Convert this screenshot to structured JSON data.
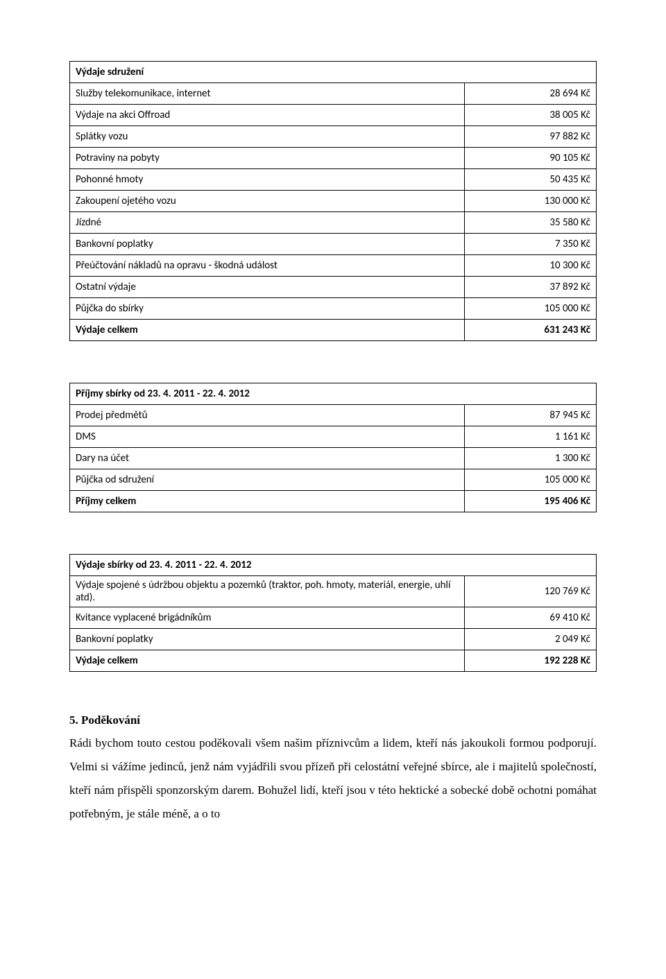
{
  "tables": {
    "expenses_assoc": {
      "header": "Výdaje sdružení",
      "rows": [
        {
          "label": "Služby telekomunikace, internet",
          "value": "28 694 Kč"
        },
        {
          "label": "Výdaje na akci Offroad",
          "value": "38 005 Kč"
        },
        {
          "label": "Splátky vozu",
          "value": "97 882 Kč"
        },
        {
          "label": "Potraviny na pobyty",
          "value": "90 105 Kč"
        },
        {
          "label": "Pohonné hmoty",
          "value": "50 435 Kč"
        },
        {
          "label": "Zakoupení ojetého vozu",
          "value": "130 000 Kč"
        },
        {
          "label": "Jízdné",
          "value": "35 580 Kč"
        },
        {
          "label": "Bankovní poplatky",
          "value": "7 350 Kč"
        },
        {
          "label": "Přeúčtování nákladů na opravu - škodná událost",
          "value": "10 300 Kč"
        },
        {
          "label": "Ostatní výdaje",
          "value": "37 892 Kč"
        },
        {
          "label": "Půjčka do sbírky",
          "value": "105 000 Kč"
        }
      ],
      "total": {
        "label": "Výdaje celkem",
        "value": "631 243 Kč"
      }
    },
    "income_collection": {
      "header": "Příjmy sbírky od 23. 4. 2011 - 22. 4. 2012",
      "rows": [
        {
          "label": "Prodej předmětů",
          "value": "87 945 Kč"
        },
        {
          "label": "DMS",
          "value": "1 161 Kč"
        },
        {
          "label": "Dary na účet",
          "value": "1 300 Kč"
        },
        {
          "label": "Půjčka od sdružení",
          "value": "105 000 Kč"
        }
      ],
      "total": {
        "label": "Příjmy celkem",
        "value": "195 406 Kč"
      }
    },
    "expenses_collection": {
      "header": "Výdaje sbírky od 23. 4. 2011 - 22. 4. 2012",
      "rows": [
        {
          "label": "Výdaje spojené s údržbou objektu a  pozemků (traktor, poh. hmoty, materiál, energie, uhlí atd).",
          "value": "120 769 Kč"
        },
        {
          "label": "Kvitance vyplacené brigádníkům",
          "value": "69 410 Kč"
        },
        {
          "label": "Bankovní poplatky",
          "value": "2 049 Kč"
        }
      ],
      "total": {
        "label": "Výdaje celkem",
        "value": "192 228 Kč"
      }
    }
  },
  "thanks": {
    "heading": "5. Poděkování",
    "body": "Rádi bychom touto cestou poděkovali všem našim příznivcům a lidem, kteří nás jakoukoli formou podporují. Velmi si vážíme jedinců, jenž nám vyjádřili svou přízeň při celostátní veřejné sbírce, ale i majitelů společností, kteří nám přispěli sponzorským darem. Bohužel lidí, kteří jsou v této hektické a sobecké době ochotni pomáhat potřebným, je stále méně,  a o to"
  }
}
